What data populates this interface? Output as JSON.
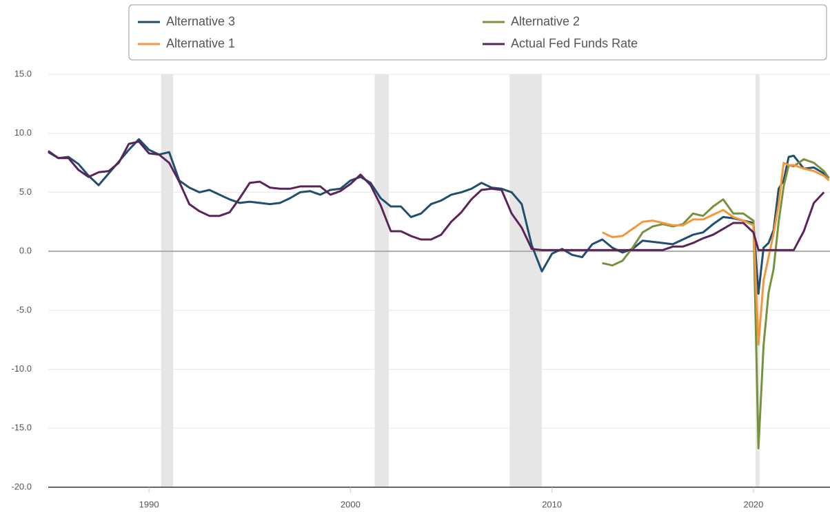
{
  "chart_data": {
    "type": "line",
    "x": [
      1985,
      1985.5,
      1986,
      1986.5,
      1987,
      1987.5,
      1988,
      1988.5,
      1989,
      1989.5,
      1990,
      1990.5,
      1991,
      1991.5,
      1992,
      1992.5,
      1993,
      1993.5,
      1994,
      1994.5,
      1995,
      1995.5,
      1996,
      1996.5,
      1997,
      1997.5,
      1998,
      1998.5,
      1999,
      1999.5,
      2000,
      2000.5,
      2001,
      2001.5,
      2002,
      2002.5,
      2003,
      2003.5,
      2004,
      2004.5,
      2005,
      2005.5,
      2006,
      2006.5,
      2007,
      2007.5,
      2008,
      2008.5,
      2009,
      2009.5,
      2010,
      2010.5,
      2011,
      2011.5,
      2012,
      2012.5,
      2013,
      2013.5,
      2014,
      2014.5,
      2015,
      2015.5,
      2016,
      2016.5,
      2017,
      2017.5,
      2018,
      2018.5,
      2019,
      2019.5,
      2020,
      2020.25,
      2020.5,
      2020.75,
      2021,
      2021.25,
      2021.5,
      2021.75,
      2022,
      2022.5,
      2023,
      2023.5,
      2023.75
    ],
    "series": [
      {
        "name": "Alternative 3",
        "color": "#1f4e6e",
        "values": [
          8.4,
          7.9,
          8.0,
          7.4,
          6.4,
          5.6,
          6.6,
          7.6,
          8.6,
          9.5,
          8.6,
          8.2,
          8.4,
          6.0,
          5.4,
          5.0,
          5.2,
          4.8,
          4.4,
          4.1,
          4.2,
          4.1,
          4.0,
          4.1,
          4.5,
          5.0,
          5.1,
          4.8,
          5.2,
          5.3,
          6.0,
          6.3,
          5.8,
          4.5,
          3.8,
          3.8,
          2.9,
          3.2,
          4.0,
          4.3,
          4.8,
          5.0,
          5.3,
          5.8,
          5.4,
          5.3,
          5.0,
          4.0,
          0.5,
          -1.7,
          -0.2,
          0.2,
          -0.3,
          -0.5,
          0.6,
          1.0,
          0.3,
          -0.1,
          0.2,
          0.9,
          0.8,
          0.7,
          0.6,
          1.0,
          1.4,
          1.6,
          2.3,
          2.9,
          2.8,
          2.6,
          2.4,
          -3.6,
          0.3,
          0.7,
          1.8,
          5.3,
          6.0,
          8.0,
          8.1,
          7.0,
          7.1,
          6.6,
          6.2
        ]
      },
      {
        "name": "Alternative 2",
        "color": "#76923c",
        "values": [
          null,
          null,
          null,
          null,
          null,
          null,
          null,
          null,
          null,
          null,
          null,
          null,
          null,
          null,
          null,
          null,
          null,
          null,
          null,
          null,
          null,
          null,
          null,
          null,
          null,
          null,
          null,
          null,
          null,
          null,
          null,
          null,
          null,
          null,
          null,
          null,
          null,
          null,
          null,
          null,
          null,
          null,
          null,
          null,
          null,
          null,
          null,
          null,
          null,
          null,
          null,
          null,
          null,
          null,
          null,
          -1.0,
          -1.2,
          -0.8,
          0.3,
          1.6,
          2.1,
          2.3,
          2.1,
          2.3,
          3.2,
          3.0,
          3.8,
          4.4,
          3.2,
          3.2,
          2.6,
          -16.7,
          -8.0,
          -3.5,
          -1.5,
          2.5,
          5.5,
          7.3,
          7.2,
          7.8,
          7.5,
          6.8,
          6.2
        ]
      },
      {
        "name": "Alternative 1",
        "color": "#f5963a",
        "values": [
          null,
          null,
          null,
          null,
          null,
          null,
          null,
          null,
          null,
          null,
          null,
          null,
          null,
          null,
          null,
          null,
          null,
          null,
          null,
          null,
          null,
          null,
          null,
          null,
          null,
          null,
          null,
          null,
          null,
          null,
          null,
          null,
          null,
          null,
          null,
          null,
          null,
          null,
          null,
          null,
          null,
          null,
          null,
          null,
          null,
          null,
          null,
          null,
          null,
          null,
          null,
          null,
          null,
          null,
          null,
          1.6,
          1.2,
          1.3,
          1.9,
          2.5,
          2.6,
          2.4,
          2.2,
          2.2,
          2.7,
          2.7,
          3.1,
          3.5,
          2.9,
          2.6,
          2.2,
          -7.9,
          -2.5,
          -0.5,
          1.5,
          4.0,
          7.5,
          7.3,
          7.3,
          7.0,
          6.8,
          6.4,
          6.0
        ]
      },
      {
        "name": "Actual Fed Funds Rate",
        "color": "#5b2459",
        "values": [
          8.5,
          7.9,
          7.9,
          6.9,
          6.3,
          6.7,
          6.8,
          7.5,
          9.1,
          9.3,
          8.3,
          8.2,
          7.5,
          5.9,
          4.0,
          3.4,
          3.0,
          3.0,
          3.3,
          4.5,
          5.8,
          5.9,
          5.4,
          5.3,
          5.3,
          5.5,
          5.5,
          5.5,
          4.8,
          5.1,
          5.7,
          6.5,
          5.6,
          3.9,
          1.7,
          1.7,
          1.3,
          1.0,
          1.0,
          1.4,
          2.5,
          3.3,
          4.4,
          5.2,
          5.3,
          5.2,
          3.2,
          2.0,
          0.2,
          0.1,
          0.1,
          0.1,
          0.1,
          0.1,
          0.1,
          0.1,
          0.1,
          0.1,
          0.1,
          0.1,
          0.1,
          0.1,
          0.4,
          0.4,
          0.7,
          1.1,
          1.4,
          1.9,
          2.4,
          2.4,
          1.6,
          0.1,
          0.1,
          0.1,
          0.1,
          0.1,
          0.1,
          0.1,
          0.1,
          1.7,
          4.1,
          5.0,
          null
        ]
      }
    ],
    "recessions": [
      [
        1990.6,
        1991.2
      ],
      [
        2001.2,
        2001.9
      ],
      [
        2007.9,
        2009.5
      ],
      [
        2020.1,
        2020.3
      ]
    ],
    "xlim": [
      1985,
      2023.8
    ],
    "xticks": [
      1990,
      2000,
      2010,
      2020
    ],
    "ylim": [
      -20,
      15
    ],
    "yticks": [
      {
        "value": -20,
        "label": "-20.0"
      },
      {
        "value": -15,
        "label": "-15.0"
      },
      {
        "value": -10,
        "label": "-10.0"
      },
      {
        "value": -5,
        "label": "-5.0"
      },
      {
        "value": 0,
        "label": "0.0"
      },
      {
        "value": 5,
        "label": "5.0"
      },
      {
        "value": 10,
        "label": "10.0"
      },
      {
        "value": 15,
        "label": "15.0"
      }
    ],
    "grid": true,
    "legend": "top"
  }
}
